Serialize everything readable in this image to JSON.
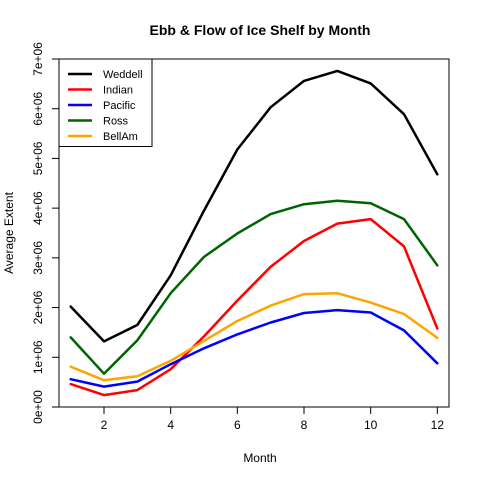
{
  "chart_data": {
    "type": "line",
    "title": "Ebb & Flow of Ice Shelf by Month",
    "xlabel": "Month",
    "ylabel": "Average Extent",
    "xlim": [
      0.65,
      12.35
    ],
    "ylim": [
      0,
      7000000
    ],
    "x_ticks": [
      2,
      4,
      6,
      8,
      10,
      12
    ],
    "y_ticks": [
      0,
      1000000,
      2000000,
      3000000,
      4000000,
      5000000,
      6000000,
      7000000
    ],
    "x_tick_labels": [
      "2",
      "4",
      "6",
      "8",
      "10",
      "12"
    ],
    "y_tick_labels": [
      "0e+00",
      "1e+06",
      "2e+06",
      "3e+06",
      "4e+06",
      "5e+06",
      "6e+06",
      "7e+06"
    ],
    "grid": false,
    "legend_position": "top-left",
    "x": [
      1,
      2,
      3,
      4,
      5,
      6,
      7,
      8,
      9,
      10,
      11,
      12
    ],
    "series": [
      {
        "name": "Weddell",
        "color": "#000000",
        "values": [
          2020000,
          1320000,
          1650000,
          2650000,
          3950000,
          5180000,
          6030000,
          6560000,
          6760000,
          6510000,
          5890000,
          4680000
        ]
      },
      {
        "name": "Indian",
        "color": "#ff0000",
        "values": [
          460000,
          240000,
          340000,
          760000,
          1420000,
          2140000,
          2820000,
          3340000,
          3690000,
          3780000,
          3230000,
          1580000
        ]
      },
      {
        "name": "Pacific",
        "color": "#0000ff",
        "values": [
          560000,
          410000,
          510000,
          860000,
          1180000,
          1460000,
          1700000,
          1890000,
          1950000,
          1900000,
          1540000,
          880000
        ]
      },
      {
        "name": "Ross",
        "color": "#006400",
        "values": [
          1400000,
          670000,
          1340000,
          2290000,
          3020000,
          3490000,
          3880000,
          4080000,
          4150000,
          4100000,
          3780000,
          2850000
        ]
      },
      {
        "name": "BellAm",
        "color": "#ffa500",
        "values": [
          810000,
          540000,
          620000,
          930000,
          1330000,
          1730000,
          2040000,
          2270000,
          2290000,
          2100000,
          1870000,
          1390000
        ]
      }
    ]
  }
}
